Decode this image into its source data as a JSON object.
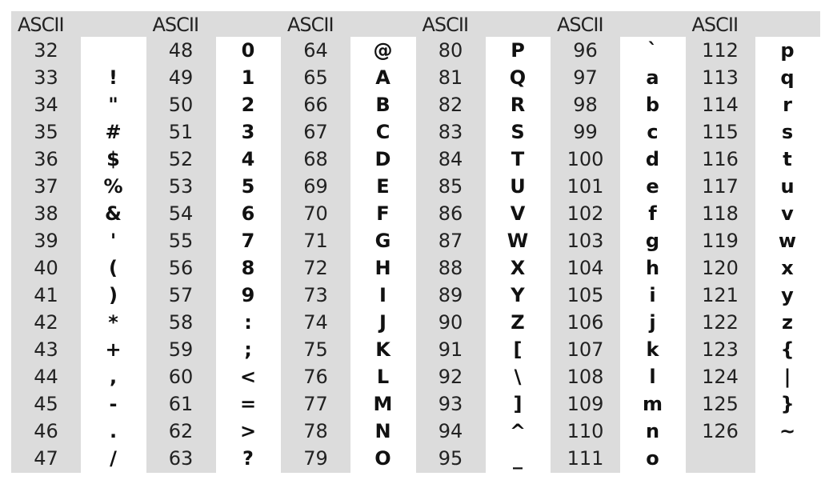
{
  "header_label": "ASCII",
  "groups": [
    {
      "rows": [
        {
          "code": "32",
          "char": ""
        },
        {
          "code": "33",
          "char": "!"
        },
        {
          "code": "34",
          "char": "\""
        },
        {
          "code": "35",
          "char": "#"
        },
        {
          "code": "36",
          "char": "$"
        },
        {
          "code": "37",
          "char": "%"
        },
        {
          "code": "38",
          "char": "&"
        },
        {
          "code": "39",
          "char": "'"
        },
        {
          "code": "40",
          "char": "("
        },
        {
          "code": "41",
          "char": ")"
        },
        {
          "code": "42",
          "char": "*"
        },
        {
          "code": "43",
          "char": "+"
        },
        {
          "code": "44",
          "char": ","
        },
        {
          "code": "45",
          "char": "-"
        },
        {
          "code": "46",
          "char": "."
        },
        {
          "code": "47",
          "char": "/"
        }
      ]
    },
    {
      "rows": [
        {
          "code": "48",
          "char": "0"
        },
        {
          "code": "49",
          "char": "1"
        },
        {
          "code": "50",
          "char": "2"
        },
        {
          "code": "51",
          "char": "3"
        },
        {
          "code": "52",
          "char": "4"
        },
        {
          "code": "53",
          "char": "5"
        },
        {
          "code": "54",
          "char": "6"
        },
        {
          "code": "55",
          "char": "7"
        },
        {
          "code": "56",
          "char": "8"
        },
        {
          "code": "57",
          "char": "9"
        },
        {
          "code": "58",
          "char": ":"
        },
        {
          "code": "59",
          "char": ";"
        },
        {
          "code": "60",
          "char": "<"
        },
        {
          "code": "61",
          "char": "="
        },
        {
          "code": "62",
          "char": ">"
        },
        {
          "code": "63",
          "char": "?"
        }
      ]
    },
    {
      "rows": [
        {
          "code": "64",
          "char": "@"
        },
        {
          "code": "65",
          "char": "A"
        },
        {
          "code": "66",
          "char": "B"
        },
        {
          "code": "67",
          "char": "C"
        },
        {
          "code": "68",
          "char": "D"
        },
        {
          "code": "69",
          "char": "E"
        },
        {
          "code": "70",
          "char": "F"
        },
        {
          "code": "71",
          "char": "G"
        },
        {
          "code": "72",
          "char": "H"
        },
        {
          "code": "73",
          "char": "I"
        },
        {
          "code": "74",
          "char": "J"
        },
        {
          "code": "75",
          "char": "K"
        },
        {
          "code": "76",
          "char": "L"
        },
        {
          "code": "77",
          "char": "M"
        },
        {
          "code": "78",
          "char": "N"
        },
        {
          "code": "79",
          "char": "O"
        }
      ]
    },
    {
      "rows": [
        {
          "code": "80",
          "char": "P"
        },
        {
          "code": "81",
          "char": "Q"
        },
        {
          "code": "82",
          "char": "R"
        },
        {
          "code": "83",
          "char": "S"
        },
        {
          "code": "84",
          "char": "T"
        },
        {
          "code": "85",
          "char": "U"
        },
        {
          "code": "86",
          "char": "V"
        },
        {
          "code": "87",
          "char": "W"
        },
        {
          "code": "88",
          "char": "X"
        },
        {
          "code": "89",
          "char": "Y"
        },
        {
          "code": "90",
          "char": "Z"
        },
        {
          "code": "91",
          "char": "["
        },
        {
          "code": "92",
          "char": "\\"
        },
        {
          "code": "93",
          "char": "]"
        },
        {
          "code": "94",
          "char": "^"
        },
        {
          "code": "95",
          "char": "_"
        }
      ]
    },
    {
      "rows": [
        {
          "code": "96",
          "char": "`"
        },
        {
          "code": "97",
          "char": "a"
        },
        {
          "code": "98",
          "char": "b"
        },
        {
          "code": "99",
          "char": "c"
        },
        {
          "code": "100",
          "char": "d"
        },
        {
          "code": "101",
          "char": "e"
        },
        {
          "code": "102",
          "char": "f"
        },
        {
          "code": "103",
          "char": "g"
        },
        {
          "code": "104",
          "char": "h"
        },
        {
          "code": "105",
          "char": "i"
        },
        {
          "code": "106",
          "char": "j"
        },
        {
          "code": "107",
          "char": "k"
        },
        {
          "code": "108",
          "char": "l"
        },
        {
          "code": "109",
          "char": "m"
        },
        {
          "code": "110",
          "char": "n"
        },
        {
          "code": "111",
          "char": "o"
        }
      ]
    },
    {
      "rows": [
        {
          "code": "112",
          "char": "p"
        },
        {
          "code": "113",
          "char": "q"
        },
        {
          "code": "114",
          "char": "r"
        },
        {
          "code": "115",
          "char": "s"
        },
        {
          "code": "116",
          "char": "t"
        },
        {
          "code": "117",
          "char": "u"
        },
        {
          "code": "118",
          "char": "v"
        },
        {
          "code": "119",
          "char": "w"
        },
        {
          "code": "120",
          "char": "x"
        },
        {
          "code": "121",
          "char": "y"
        },
        {
          "code": "122",
          "char": "z"
        },
        {
          "code": "123",
          "char": "{"
        },
        {
          "code": "124",
          "char": "|"
        },
        {
          "code": "125",
          "char": "}"
        },
        {
          "code": "126",
          "char": "~"
        },
        {
          "code": "",
          "char": ""
        }
      ]
    }
  ]
}
